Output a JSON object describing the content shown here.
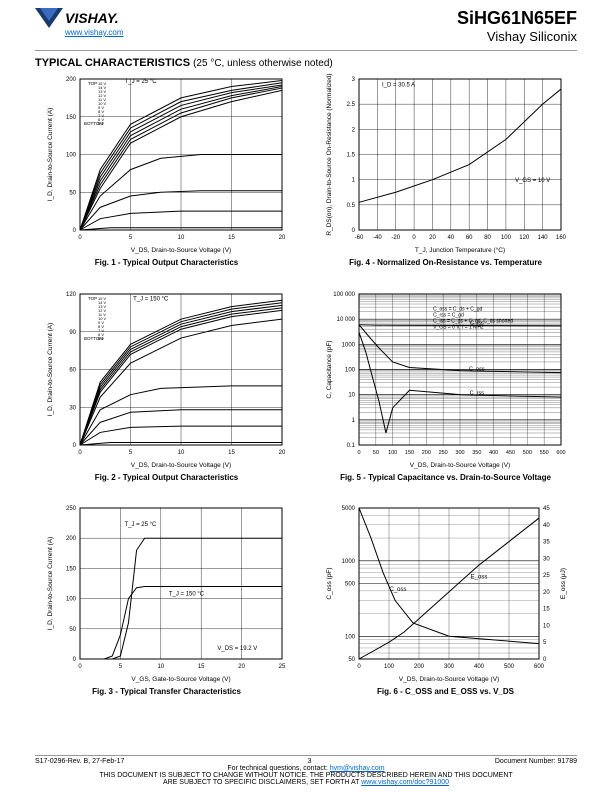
{
  "header": {
    "logo_text": "VISHAY.",
    "logo_url": "www.vishay.com",
    "part_number": "SiHG61N65EF",
    "sub_brand": "Vishay Siliconix"
  },
  "section_title": "TYPICAL CHARACTERISTICS",
  "section_note": "(25 °C, unless otherwise noted)",
  "colors": {
    "axis": "#000000",
    "grid": "#000000",
    "line": "#000000",
    "bg": "#ffffff",
    "link": "#0066cc"
  },
  "charts": {
    "fig1": {
      "caption": "Fig. 1 - Typical Output Characteristics",
      "xlabel": "V_DS, Drain-to-Source Voltage (V)",
      "ylabel": "I_D, Drain-to-Source Current (A)",
      "xlim": [
        0,
        20
      ],
      "xticks": [
        0,
        5,
        10,
        15,
        20
      ],
      "ylim": [
        0,
        200
      ],
      "yticks": [
        0,
        50,
        100,
        150,
        200
      ],
      "title_annot": "T_J = 25 °C",
      "legend_top": "TOP",
      "legend_bottom": "BOTTOM",
      "legend_values": [
        "15 V",
        "14 V",
        "13 V",
        "12 V",
        "11 V",
        "10 V",
        "9 V",
        "8 V",
        "7 V",
        "6 V",
        "5 V"
      ],
      "series": [
        {
          "pts": [
            [
              0,
              0
            ],
            [
              2,
              80
            ],
            [
              5,
              140
            ],
            [
              10,
              175
            ],
            [
              15,
              190
            ],
            [
              20,
              198
            ]
          ]
        },
        {
          "pts": [
            [
              0,
              0
            ],
            [
              2,
              75
            ],
            [
              5,
              135
            ],
            [
              10,
              170
            ],
            [
              15,
              185
            ],
            [
              20,
              195
            ]
          ]
        },
        {
          "pts": [
            [
              0,
              0
            ],
            [
              2,
              70
            ],
            [
              5,
              130
            ],
            [
              10,
              165
            ],
            [
              15,
              182
            ],
            [
              20,
              192
            ]
          ]
        },
        {
          "pts": [
            [
              0,
              0
            ],
            [
              2,
              65
            ],
            [
              5,
              125
            ],
            [
              10,
              160
            ],
            [
              15,
              178
            ],
            [
              20,
              190
            ]
          ]
        },
        {
          "pts": [
            [
              0,
              0
            ],
            [
              2,
              60
            ],
            [
              5,
              120
            ],
            [
              10,
              155
            ],
            [
              15,
              175
            ],
            [
              20,
              188
            ]
          ]
        },
        {
          "pts": [
            [
              0,
              0
            ],
            [
              2,
              55
            ],
            [
              5,
              115
            ],
            [
              10,
              150
            ],
            [
              15,
              170
            ],
            [
              20,
              185
            ]
          ]
        },
        {
          "pts": [
            [
              0,
              0
            ],
            [
              2,
              45
            ],
            [
              5,
              80
            ],
            [
              8,
              95
            ],
            [
              12,
              100
            ],
            [
              20,
              100
            ]
          ]
        },
        {
          "pts": [
            [
              0,
              0
            ],
            [
              2,
              30
            ],
            [
              5,
              45
            ],
            [
              8,
              50
            ],
            [
              12,
              52
            ],
            [
              20,
              52
            ]
          ]
        },
        {
          "pts": [
            [
              0,
              0
            ],
            [
              2,
              15
            ],
            [
              5,
              22
            ],
            [
              10,
              25
            ],
            [
              20,
              25
            ]
          ]
        },
        {
          "pts": [
            [
              0,
              0
            ],
            [
              3,
              3
            ],
            [
              10,
              3
            ],
            [
              20,
              3
            ]
          ]
        }
      ]
    },
    "fig2": {
      "caption": "Fig. 2 - Typical Output Characteristics",
      "xlabel": "V_DS, Drain-to-Source Voltage (V)",
      "ylabel": "I_D, Drain-to-Source Current (A)",
      "xlim": [
        0,
        20
      ],
      "xticks": [
        0,
        5,
        10,
        15,
        20
      ],
      "ylim": [
        0,
        120
      ],
      "yticks": [
        0,
        30,
        60,
        90,
        120
      ],
      "title_annot": "T_J = 150 °C",
      "legend_top": "TOP",
      "legend_bottom": "BOTTOM",
      "legend_values": [
        "15 V",
        "14 V",
        "13 V",
        "12 V",
        "11 V",
        "10 V",
        "9 V",
        "8 V",
        "7 V",
        "6 V",
        "5 V"
      ],
      "series": [
        {
          "pts": [
            [
              0,
              0
            ],
            [
              2,
              50
            ],
            [
              5,
              80
            ],
            [
              10,
              100
            ],
            [
              15,
              110
            ],
            [
              20,
              115
            ]
          ]
        },
        {
          "pts": [
            [
              0,
              0
            ],
            [
              2,
              48
            ],
            [
              5,
              78
            ],
            [
              10,
              98
            ],
            [
              15,
              108
            ],
            [
              20,
              113
            ]
          ]
        },
        {
          "pts": [
            [
              0,
              0
            ],
            [
              2,
              46
            ],
            [
              5,
              76
            ],
            [
              10,
              96
            ],
            [
              15,
              106
            ],
            [
              20,
              111
            ]
          ]
        },
        {
          "pts": [
            [
              0,
              0
            ],
            [
              2,
              44
            ],
            [
              5,
              74
            ],
            [
              10,
              94
            ],
            [
              15,
              104
            ],
            [
              20,
              109
            ]
          ]
        },
        {
          "pts": [
            [
              0,
              0
            ],
            [
              2,
              42
            ],
            [
              5,
              72
            ],
            [
              10,
              92
            ],
            [
              15,
              102
            ],
            [
              20,
              107
            ]
          ]
        },
        {
          "pts": [
            [
              0,
              0
            ],
            [
              2,
              38
            ],
            [
              5,
              65
            ],
            [
              10,
              85
            ],
            [
              15,
              95
            ],
            [
              20,
              100
            ]
          ]
        },
        {
          "pts": [
            [
              0,
              0
            ],
            [
              2,
              28
            ],
            [
              5,
              40
            ],
            [
              8,
              45
            ],
            [
              15,
              47
            ],
            [
              20,
              47
            ]
          ]
        },
        {
          "pts": [
            [
              0,
              0
            ],
            [
              2,
              18
            ],
            [
              5,
              26
            ],
            [
              10,
              28
            ],
            [
              20,
              28
            ]
          ]
        },
        {
          "pts": [
            [
              0,
              0
            ],
            [
              2,
              10
            ],
            [
              5,
              14
            ],
            [
              10,
              15
            ],
            [
              20,
              15
            ]
          ]
        },
        {
          "pts": [
            [
              0,
              0
            ],
            [
              3,
              2
            ],
            [
              10,
              2
            ],
            [
              20,
              2
            ]
          ]
        }
      ]
    },
    "fig3": {
      "caption": "Fig. 3 - Typical Transfer Characteristics",
      "xlabel": "V_GS, Gate-to-Source Voltage (V)",
      "ylabel": "I_D, Drain-to-Source Current (A)",
      "xlim": [
        0,
        25
      ],
      "xticks": [
        0,
        5,
        10,
        15,
        20,
        25
      ],
      "ylim": [
        0,
        250
      ],
      "yticks": [
        0,
        50,
        100,
        150,
        200,
        250
      ],
      "annot1": "T_J = 25 °C",
      "annot2": "T_J = 150 °C",
      "annot3": "V_DS = 19.2 V",
      "series": [
        {
          "pts": [
            [
              4,
              0
            ],
            [
              5,
              5
            ],
            [
              6,
              60
            ],
            [
              7,
              180
            ],
            [
              8,
              200
            ],
            [
              10,
              200
            ],
            [
              25,
              200
            ]
          ]
        },
        {
          "pts": [
            [
              3,
              0
            ],
            [
              4,
              5
            ],
            [
              5,
              40
            ],
            [
              6,
              100
            ],
            [
              7,
              118
            ],
            [
              8,
              120
            ],
            [
              12,
              120
            ],
            [
              25,
              120
            ]
          ]
        }
      ]
    },
    "fig4": {
      "caption": "Fig. 4 - Normalized On-Resistance vs. Temperature",
      "xlabel": "T_J, Junction Temperature (°C)",
      "ylabel": "R_DS(on), Drain-to-Source On-Resistance (Normalized)",
      "xlim": [
        -60,
        160
      ],
      "xticks": [
        -60,
        -40,
        -20,
        0,
        20,
        40,
        60,
        80,
        100,
        120,
        140,
        160
      ],
      "ylim": [
        0,
        3.0
      ],
      "yticks": [
        0,
        0.5,
        1.0,
        1.5,
        2.0,
        2.5,
        3.0
      ],
      "annot1": "I_D = 30.5 A",
      "annot2": "V_GS = 10 V",
      "series": [
        {
          "pts": [
            [
              -60,
              0.55
            ],
            [
              -20,
              0.75
            ],
            [
              20,
              1.0
            ],
            [
              60,
              1.3
            ],
            [
              100,
              1.8
            ],
            [
              140,
              2.5
            ],
            [
              160,
              2.8
            ]
          ]
        }
      ]
    },
    "fig5": {
      "caption": "Fig. 5 - Typical Capacitance vs. Drain-to-Source Voltage",
      "xlabel": "V_DS, Drain-to-Source Voltage (V)",
      "ylabel": "C, Capacitance (pF)",
      "xlim": [
        0,
        600
      ],
      "xticks": [
        0,
        50,
        100,
        150,
        200,
        250,
        300,
        350,
        400,
        450,
        500,
        550,
        600
      ],
      "ylim_log": [
        0.1,
        100000
      ],
      "ydecades": [
        0.1,
        1,
        10,
        100,
        1000,
        10000,
        100000
      ],
      "ylabels": [
        "0.1",
        "1",
        "10",
        "100",
        "1000",
        "10 000",
        "100 000"
      ],
      "annot": [
        "V_GS = 0 V, f = 1 MHz",
        "C_iss = C_gs + C_gd, C_ds shorted",
        "C_rss = C_gd",
        "C_oss = C_ds + C_gd"
      ],
      "curve_labels": [
        "C_iss",
        "C_oss",
        "C_rss"
      ],
      "series": [
        {
          "name": "Ciss",
          "pts": [
            [
              0,
              6000
            ],
            [
              50,
              5800
            ],
            [
              100,
              5700
            ],
            [
              300,
              5600
            ],
            [
              600,
              5500
            ]
          ]
        },
        {
          "name": "Coss",
          "pts": [
            [
              0,
              6000
            ],
            [
              30,
              2000
            ],
            [
              60,
              700
            ],
            [
              100,
              200
            ],
            [
              150,
              120
            ],
            [
              300,
              90
            ],
            [
              600,
              75
            ]
          ]
        },
        {
          "name": "Crss",
          "pts": [
            [
              0,
              3000
            ],
            [
              20,
              500
            ],
            [
              40,
              50
            ],
            [
              60,
              5
            ],
            [
              80,
              0.3
            ],
            [
              100,
              3
            ],
            [
              150,
              15
            ],
            [
              300,
              10
            ],
            [
              600,
              8
            ]
          ]
        }
      ]
    },
    "fig6": {
      "caption": "Fig. 6 - C_OSS and E_OSS vs. V_DS",
      "xlabel": "V_DS, Drain-to-Source Voltage (V)",
      "ylabel_left": "C_oss (pF)",
      "ylabel_right": "E_oss (μJ)",
      "xlim": [
        0,
        600
      ],
      "xticks": [
        0,
        100,
        200,
        300,
        400,
        500,
        600
      ],
      "ylim_left_log": [
        50,
        5000
      ],
      "yleft_decades": [
        50,
        100,
        500,
        1000,
        5000
      ],
      "yleft_labels": [
        "50",
        "100",
        "500",
        "1000",
        "5000"
      ],
      "ylim_right": [
        0,
        45
      ],
      "yticks_right": [
        0,
        5,
        10,
        15,
        20,
        25,
        30,
        35,
        40,
        45
      ],
      "annot_coss": "C_oss",
      "annot_eoss": "E_oss",
      "series_coss": {
        "pts": [
          [
            0,
            5000
          ],
          [
            40,
            2000
          ],
          [
            80,
            700
          ],
          [
            120,
            300
          ],
          [
            180,
            150
          ],
          [
            300,
            100
          ],
          [
            600,
            80
          ]
        ]
      },
      "series_eoss": {
        "pts": [
          [
            0,
            0
          ],
          [
            80,
            4
          ],
          [
            100,
            5
          ],
          [
            150,
            8
          ],
          [
            200,
            12
          ],
          [
            300,
            20
          ],
          [
            400,
            28
          ],
          [
            500,
            35
          ],
          [
            600,
            42
          ]
        ]
      }
    }
  },
  "footer": {
    "left": "S17-0296-Rev. B, 27-Feb-17",
    "page": "3",
    "right": "Document Number: 91789",
    "tech": "For technical questions, contact:",
    "tech_email": "hvm@vishay.com",
    "disc1": "THIS DOCUMENT IS SUBJECT TO CHANGE WITHOUT NOTICE. THE PRODUCTS DESCRIBED HEREIN AND THIS DOCUMENT",
    "disc2": "ARE SUBJECT TO SPECIFIC DISCLAIMERS, SET FORTH AT",
    "disc_url": "www.vishay.com/doc?91000"
  }
}
